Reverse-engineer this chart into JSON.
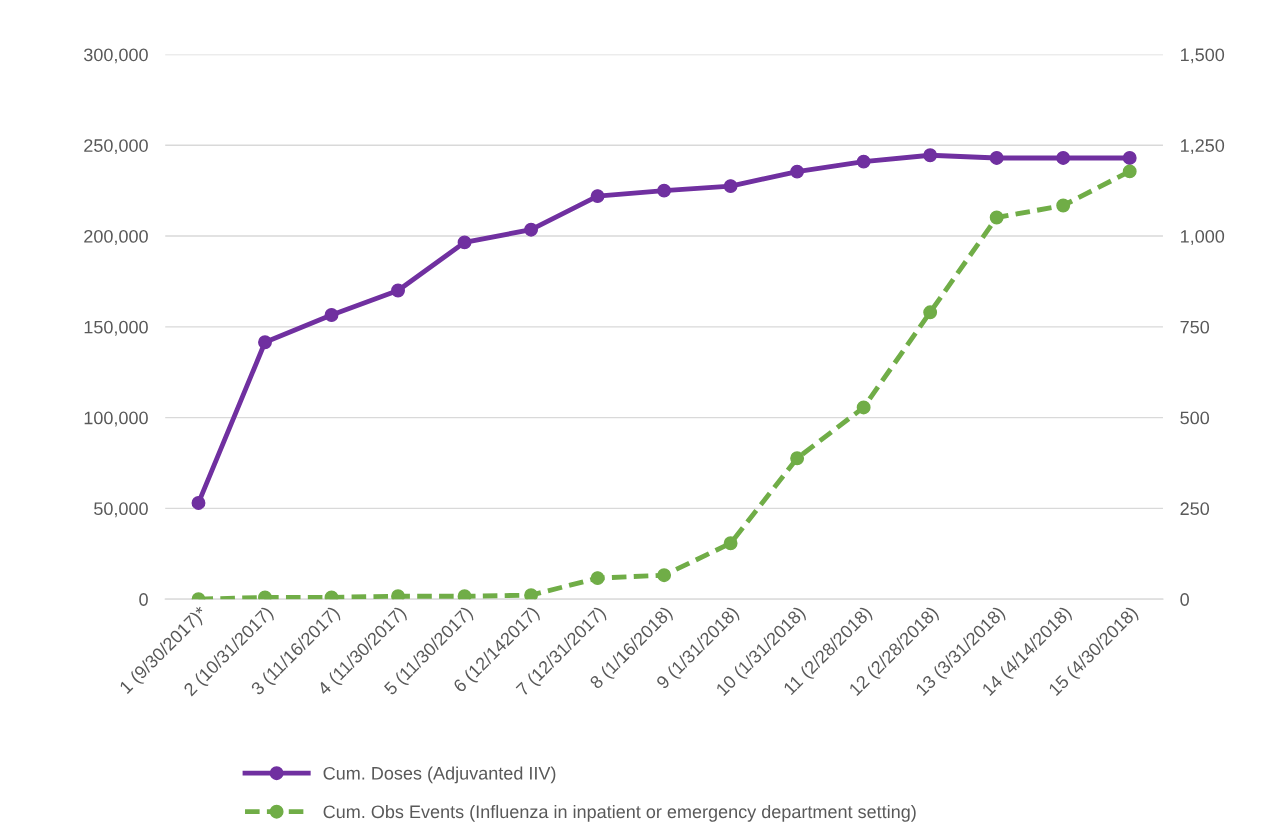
{
  "chart_data": {
    "type": "line",
    "categories": [
      "1 (9/30/2017)*",
      "2 (10/31/2017)",
      "3 (11/16/2017)",
      "4 (11/30/2017)",
      "5 (11/30/2017)",
      "6 (12/142017)",
      "7 (12/31/2017)",
      "8 (1/16/2018)",
      "9 (1/31/2018)",
      "10 (1/31/2018)",
      "11 (2/28/2018)",
      "12 (2/28/2018)",
      "13 (3/31/2018)",
      "14 (4/14/2018)",
      "15 (4/30/2018)"
    ],
    "series": [
      {
        "name": "Cum. Doses (Adjuvanted IIV)",
        "color": "#7030a0",
        "line_style": "solid",
        "values": [
          53000,
          141500,
          156500,
          170000,
          196500,
          203500,
          222000,
          225000,
          227500,
          235500,
          241000,
          244500,
          243000,
          243000,
          243000
        ]
      },
      {
        "name": "Cum. Obs Events (Influenza in inpatient or emergency department setting)",
        "color": "#70ad47",
        "line_style": "dashed",
        "axis": "y2",
        "values": [
          0,
          5,
          5,
          8,
          8,
          11,
          58,
          66,
          154,
          388,
          528,
          790,
          1051,
          1084,
          1178
        ]
      }
    ],
    "ylim": [
      0,
      300000
    ],
    "yticks": [
      {
        "value": 0,
        "label": "0"
      },
      {
        "value": 50000,
        "label": "50,000"
      },
      {
        "value": 100000,
        "label": "100,000"
      },
      {
        "value": 150000,
        "label": "150,000"
      },
      {
        "value": 200000,
        "label": "200,000"
      },
      {
        "value": 250000,
        "label": "250,000"
      },
      {
        "value": 300000,
        "label": "300,000"
      }
    ],
    "y2lim": [
      0,
      1500
    ],
    "y2ticks": [
      {
        "value": 0,
        "label": "0"
      },
      {
        "value": 250,
        "label": "250"
      },
      {
        "value": 500,
        "label": "500"
      },
      {
        "value": 750,
        "label": "750"
      },
      {
        "value": 1000,
        "label": "1,000"
      },
      {
        "value": 1250,
        "label": "1,250"
      },
      {
        "value": 1500,
        "label": "1,500"
      }
    ],
    "grid": "y",
    "legend": "bottom",
    "marker": "circle"
  }
}
